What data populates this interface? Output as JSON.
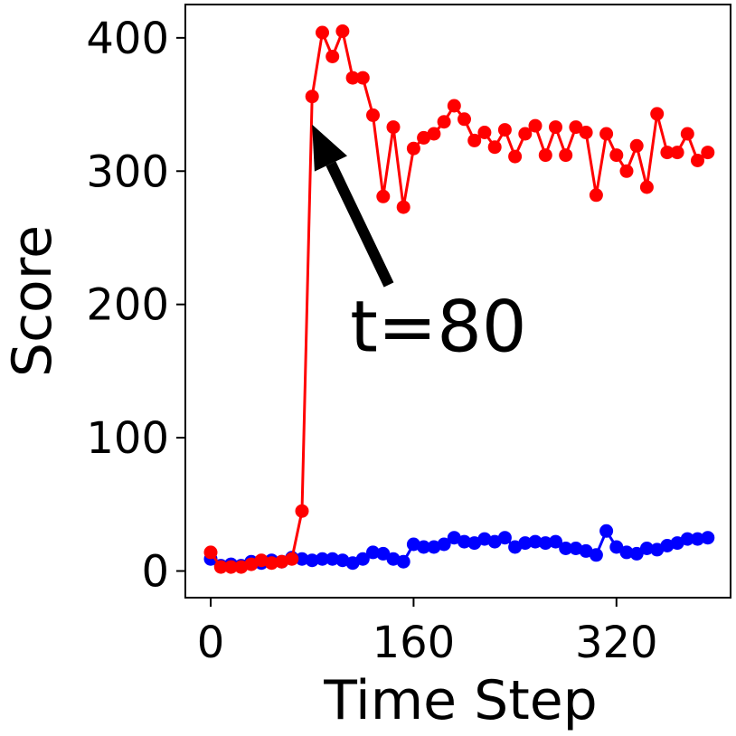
{
  "chart_data": {
    "type": "line",
    "title": "",
    "xlabel": "Time Step",
    "ylabel": "Score",
    "xlim": [
      -20,
      410
    ],
    "ylim": [
      -20,
      425
    ],
    "xticks": [
      {
        "value": 0,
        "label": "0"
      },
      {
        "value": 160,
        "label": "160"
      },
      {
        "value": 320,
        "label": "320"
      }
    ],
    "yticks": [
      {
        "value": 0,
        "label": "0"
      },
      {
        "value": 100,
        "label": "100"
      },
      {
        "value": 200,
        "label": "200"
      },
      {
        "value": 300,
        "label": "300"
      },
      {
        "value": 400,
        "label": "400"
      }
    ],
    "grid": false,
    "legend": "none",
    "series": [
      {
        "color": "#ff0000",
        "x": [
          0,
          8,
          16,
          24,
          32,
          40,
          48,
          56,
          64,
          72,
          80,
          88,
          96,
          104,
          112,
          120,
          128,
          136,
          144,
          152,
          160,
          168,
          176,
          184,
          192,
          200,
          208,
          216,
          224,
          232,
          240,
          248,
          256,
          264,
          272,
          280,
          288,
          296,
          304,
          312,
          320,
          328,
          336,
          344,
          352,
          360,
          368,
          376,
          384,
          392
        ],
        "y": [
          14,
          3,
          3,
          3,
          5,
          8,
          6,
          7,
          9,
          45,
          356,
          404,
          386,
          405,
          370,
          370,
          342,
          281,
          333,
          273,
          317,
          325,
          328,
          337,
          349,
          339,
          323,
          329,
          318,
          331,
          311,
          328,
          334,
          312,
          333,
          312,
          333,
          329,
          282,
          328,
          312,
          300,
          319,
          288,
          343,
          314,
          314,
          328,
          308,
          314
        ]
      },
      {
        "color": "#0000ff",
        "x": [
          0,
          8,
          16,
          24,
          32,
          40,
          48,
          56,
          64,
          72,
          80,
          88,
          96,
          104,
          112,
          120,
          128,
          136,
          144,
          152,
          160,
          168,
          176,
          184,
          192,
          200,
          208,
          216,
          224,
          232,
          240,
          248,
          256,
          264,
          272,
          280,
          288,
          296,
          304,
          312,
          320,
          328,
          336,
          344,
          352,
          360,
          368,
          376,
          384,
          392
        ],
        "y": [
          9,
          4,
          5,
          4,
          7,
          6,
          8,
          7,
          10,
          9,
          8,
          9,
          9,
          8,
          6,
          9,
          14,
          13,
          9,
          7,
          20,
          18,
          18,
          20,
          25,
          22,
          21,
          24,
          22,
          25,
          18,
          21,
          22,
          21,
          22,
          17,
          17,
          15,
          12,
          30,
          18,
          14,
          13,
          17,
          16,
          19,
          21,
          24,
          24,
          25
        ]
      }
    ],
    "annotations": [
      {
        "text": "t=80",
        "arrow_to": [
          80,
          335
        ],
        "text_at": [
          110,
          165
        ]
      }
    ]
  }
}
